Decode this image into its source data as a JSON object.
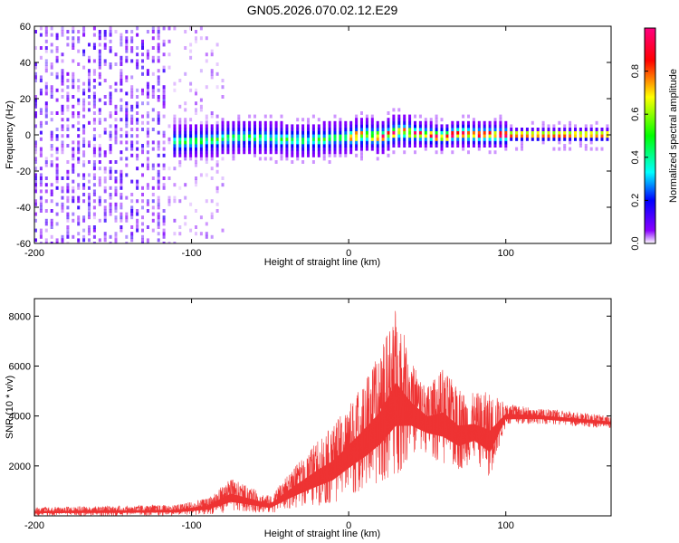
{
  "chart_data": [
    {
      "type": "heatmap",
      "title": "GN05.2026.070.02.12.E29",
      "xlabel": "Height of straight line (km)",
      "ylabel": "Frequency (Hz)",
      "xlim": [
        -200,
        167
      ],
      "ylim": [
        -60,
        60
      ],
      "xticks": [
        -200,
        -100,
        0,
        100
      ],
      "yticks": [
        -60,
        -40,
        -20,
        0,
        20,
        40,
        60
      ],
      "grid": false,
      "colorbar": {
        "label": "Normalized spectral amplitude",
        "range": [
          0,
          1
        ],
        "ticks": [
          0.0,
          0.2,
          0.4,
          0.6,
          0.8
        ],
        "tick_labels": [
          "0.0",
          "0.2",
          "0.4",
          "0.6",
          "0.8"
        ],
        "colormap": [
          "#ffffff",
          "#8a00ff",
          "#0000ff",
          "#00ffff",
          "#00ff00",
          "#ffff00",
          "#ff0000",
          "#ff0080"
        ]
      },
      "centerline": [
        {
          "x": -110,
          "f": -4
        },
        {
          "x": -90,
          "f": -3
        },
        {
          "x": -70,
          "f": -1
        },
        {
          "x": -50,
          "f": -2
        },
        {
          "x": -30,
          "f": -3
        },
        {
          "x": -10,
          "f": -2
        },
        {
          "x": 0,
          "f": -1
        },
        {
          "x": 10,
          "f": 0
        },
        {
          "x": 20,
          "f": -1
        },
        {
          "x": 30,
          "f": 2
        },
        {
          "x": 40,
          "f": 1
        },
        {
          "x": 50,
          "f": 0
        },
        {
          "x": 60,
          "f": -1
        },
        {
          "x": 70,
          "f": 1
        },
        {
          "x": 80,
          "f": 0
        },
        {
          "x": 90,
          "f": 0
        },
        {
          "x": 100,
          "f": 0
        },
        {
          "x": 167,
          "f": 0
        }
      ]
    },
    {
      "type": "line",
      "title": "",
      "xlabel": "Height of straight line (km)",
      "ylabel": "SNR (10 * v/v)",
      "xlim": [
        -200,
        167
      ],
      "ylim": [
        0,
        8700
      ],
      "xticks": [
        -200,
        -100,
        0,
        100
      ],
      "yticks": [
        2000,
        4000,
        6000,
        8000
      ],
      "grid": false,
      "line_color": "#ee3333",
      "envelope": [
        {
          "x": -200,
          "low": 0,
          "high": 350
        },
        {
          "x": -150,
          "low": 0,
          "high": 400
        },
        {
          "x": -110,
          "low": 0,
          "high": 450
        },
        {
          "x": -90,
          "low": 50,
          "high": 700
        },
        {
          "x": -75,
          "low": 150,
          "high": 1500
        },
        {
          "x": -65,
          "low": 150,
          "high": 1200
        },
        {
          "x": -50,
          "low": 100,
          "high": 800
        },
        {
          "x": -35,
          "low": 300,
          "high": 1900
        },
        {
          "x": -20,
          "low": 400,
          "high": 3000
        },
        {
          "x": -10,
          "low": 500,
          "high": 3600
        },
        {
          "x": 0,
          "low": 800,
          "high": 4500
        },
        {
          "x": 10,
          "low": 1000,
          "high": 5500
        },
        {
          "x": 20,
          "low": 1300,
          "high": 6500
        },
        {
          "x": 30,
          "low": 1500,
          "high": 8500
        },
        {
          "x": 40,
          "low": 2500,
          "high": 6200
        },
        {
          "x": 50,
          "low": 2500,
          "high": 5200
        },
        {
          "x": 60,
          "low": 2000,
          "high": 5900
        },
        {
          "x": 70,
          "low": 1800,
          "high": 5100
        },
        {
          "x": 80,
          "low": 2200,
          "high": 4900
        },
        {
          "x": 90,
          "low": 1500,
          "high": 5000
        },
        {
          "x": 100,
          "low": 3600,
          "high": 4500
        },
        {
          "x": 120,
          "low": 3700,
          "high": 4300
        },
        {
          "x": 140,
          "low": 3600,
          "high": 4200
        },
        {
          "x": 167,
          "low": 3500,
          "high": 4000
        }
      ]
    }
  ]
}
